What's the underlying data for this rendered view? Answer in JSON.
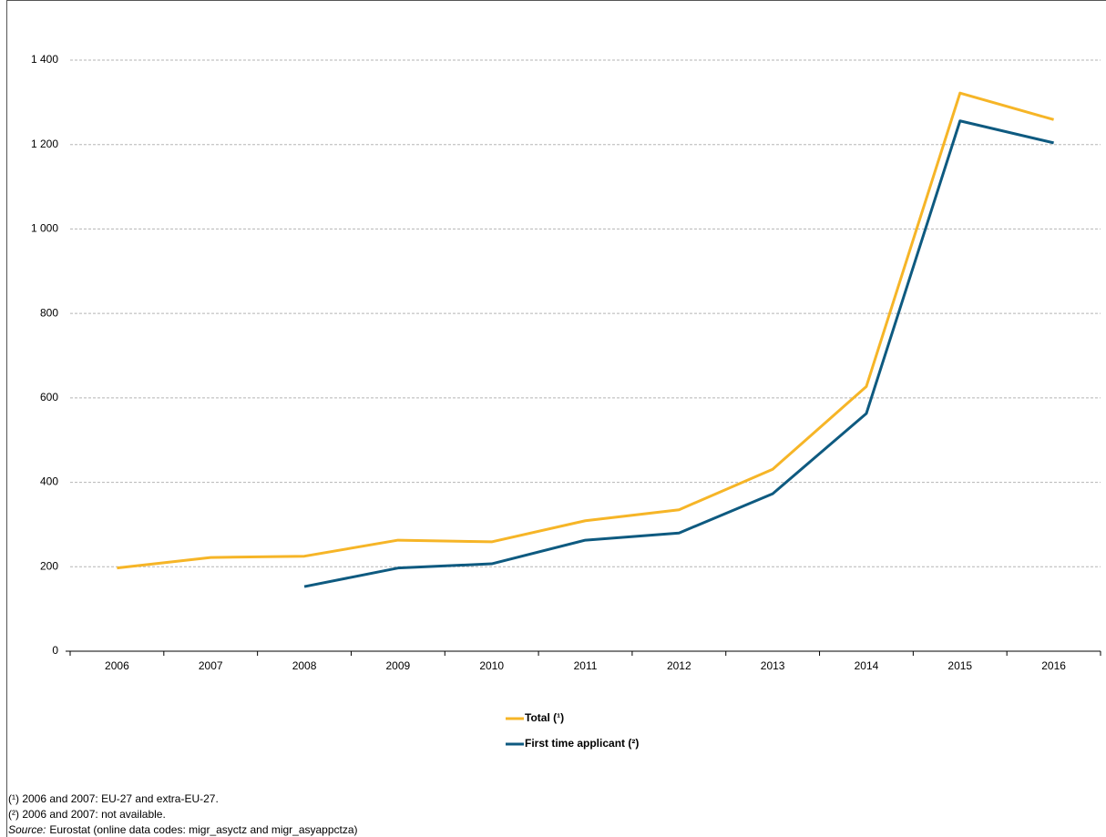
{
  "chart_data": {
    "type": "line",
    "categories": [
      "2006",
      "2007",
      "2008",
      "2009",
      "2010",
      "2011",
      "2012",
      "2013",
      "2014",
      "2015",
      "2016"
    ],
    "series": [
      {
        "name": "Total (¹)",
        "color": "#f6b527",
        "values": [
          197,
          222,
          225,
          263,
          259,
          309,
          335,
          431,
          627,
          1322,
          1259
        ]
      },
      {
        "name": "First time applicant (²)",
        "color": "#0e5a80",
        "values": [
          null,
          null,
          153,
          197,
          207,
          263,
          280,
          373,
          563,
          1256,
          1204
        ]
      }
    ],
    "ylim": [
      0,
      1400
    ],
    "yticks": [
      0,
      200,
      400,
      600,
      800,
      {
        "value": 1000,
        "label": "1 000"
      },
      {
        "value": 1200,
        "label": "1 200"
      },
      {
        "value": 1400,
        "label": "1 400"
      }
    ],
    "grid": true,
    "legend": "bottom",
    "footnotes": [
      "(¹) 2006 and 2007: EU-27 and extra-EU-27.",
      "(²) 2006 and 2007: not available."
    ],
    "source": {
      "label": "Source:",
      "text": "Eurostat (online data codes: migr_asyctz and migr_asyappctza)"
    }
  }
}
